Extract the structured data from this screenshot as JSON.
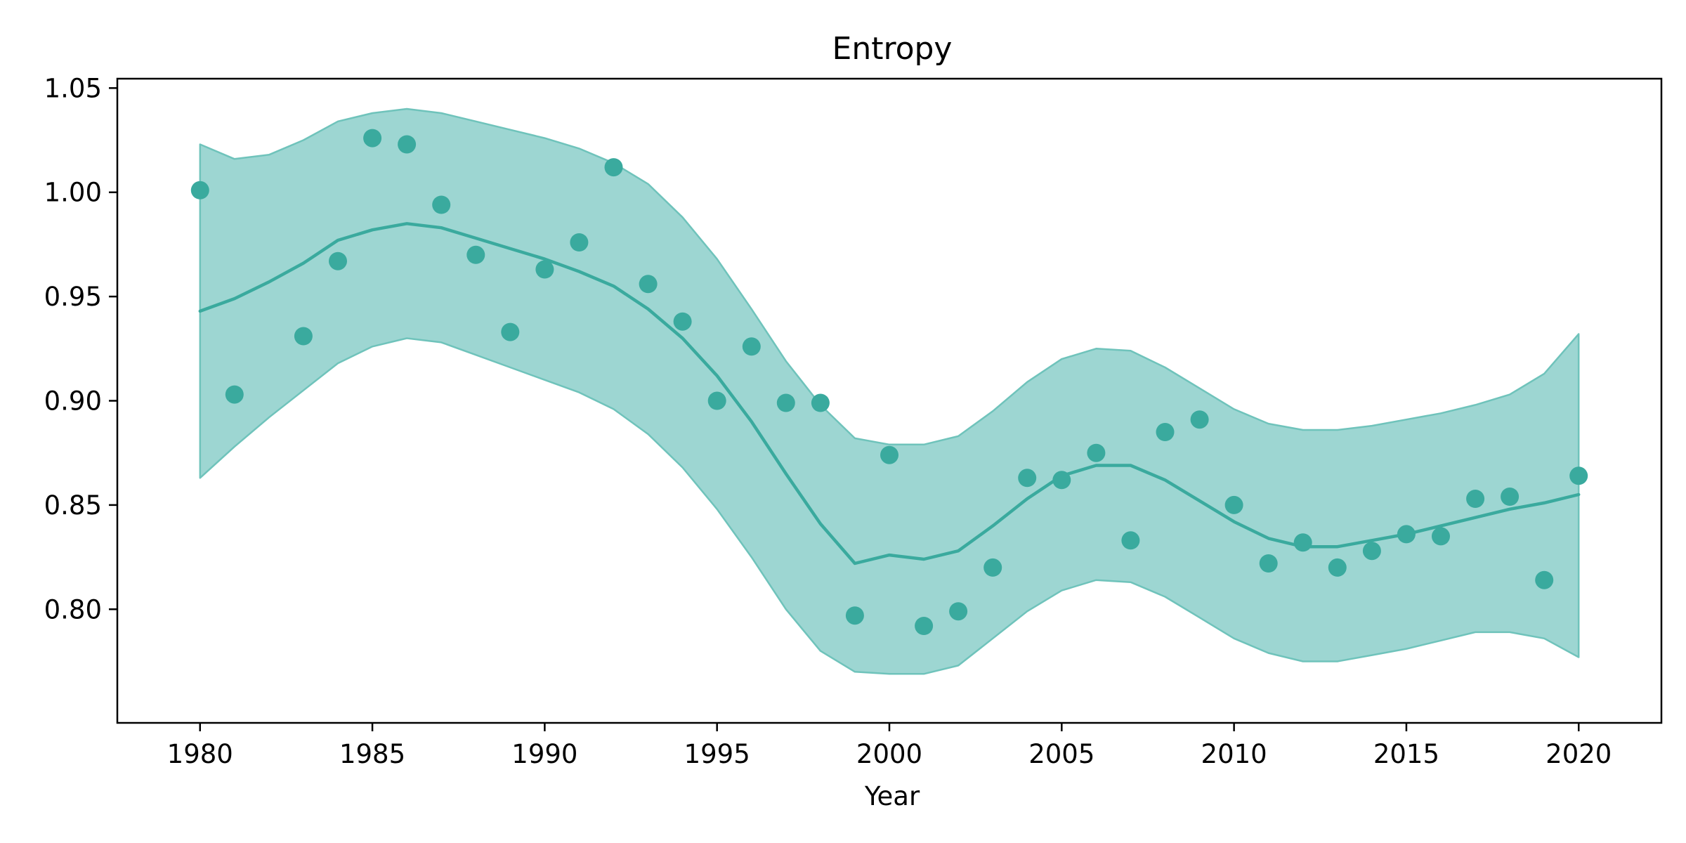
{
  "chart_data": {
    "type": "scatter",
    "title": "Entropy",
    "xlabel": "Year",
    "ylabel": "",
    "xlim": [
      1977.6,
      2022.4
    ],
    "ylim": [
      0.7455,
      1.0545
    ],
    "x_ticks": [
      1980,
      1985,
      1990,
      1995,
      2000,
      2005,
      2010,
      2015,
      2020
    ],
    "x_tick_labels": [
      "1980",
      "1985",
      "1990",
      "1995",
      "2000",
      "2005",
      "2010",
      "2015",
      "2020"
    ],
    "y_ticks": [
      0.8,
      0.85,
      0.9,
      0.95,
      1.0,
      1.05
    ],
    "y_tick_labels": [
      "0.80",
      "0.85",
      "0.90",
      "0.95",
      "1.00",
      "1.05"
    ],
    "grid": false,
    "color": "#3aaa9e",
    "band_color": "#9dd6d2",
    "points": {
      "x": [
        1980,
        1981,
        1983,
        1984,
        1985,
        1986,
        1987,
        1988,
        1989,
        1990,
        1991,
        1992,
        1993,
        1994,
        1995,
        1996,
        1997,
        1998,
        1999,
        2000,
        2001,
        2002,
        2003,
        2004,
        2005,
        2006,
        2007,
        2008,
        2009,
        2010,
        2011,
        2012,
        2013,
        2014,
        2015,
        2016,
        2017,
        2018,
        2019,
        2020
      ],
      "y": [
        1.001,
        0.903,
        0.931,
        0.967,
        1.026,
        1.023,
        0.994,
        0.97,
        0.933,
        0.963,
        0.976,
        1.012,
        0.956,
        0.938,
        0.9,
        0.926,
        0.899,
        0.899,
        0.797,
        0.874,
        0.792,
        0.799,
        0.82,
        0.863,
        0.862,
        0.875,
        0.833,
        0.885,
        0.891,
        0.85,
        0.822,
        0.832,
        0.82,
        0.828,
        0.836,
        0.835,
        0.853,
        0.854,
        0.814,
        0.864
      ]
    },
    "trend": {
      "x": [
        1980,
        1981,
        1982,
        1983,
        1984,
        1985,
        1986,
        1987,
        1988,
        1989,
        1990,
        1991,
        1992,
        1993,
        1994,
        1995,
        1996,
        1997,
        1998,
        1999,
        2000,
        2001,
        2002,
        2003,
        2004,
        2005,
        2006,
        2007,
        2008,
        2009,
        2010,
        2011,
        2012,
        2013,
        2014,
        2015,
        2016,
        2017,
        2018,
        2019,
        2020
      ],
      "y": [
        0.943,
        0.949,
        0.957,
        0.966,
        0.977,
        0.982,
        0.985,
        0.983,
        0.978,
        0.973,
        0.968,
        0.962,
        0.955,
        0.944,
        0.93,
        0.912,
        0.89,
        0.865,
        0.841,
        0.822,
        0.826,
        0.824,
        0.828,
        0.84,
        0.853,
        0.864,
        0.869,
        0.869,
        0.862,
        0.852,
        0.842,
        0.834,
        0.83,
        0.83,
        0.833,
        0.836,
        0.84,
        0.844,
        0.848,
        0.851,
        0.855
      ],
      "upper": [
        1.023,
        1.016,
        1.018,
        1.025,
        1.034,
        1.038,
        1.04,
        1.038,
        1.034,
        1.03,
        1.026,
        1.021,
        1.014,
        1.004,
        0.988,
        0.968,
        0.944,
        0.919,
        0.898,
        0.882,
        0.879,
        0.879,
        0.883,
        0.895,
        0.909,
        0.92,
        0.925,
        0.924,
        0.916,
        0.906,
        0.896,
        0.889,
        0.886,
        0.886,
        0.888,
        0.891,
        0.894,
        0.898,
        0.903,
        0.913,
        0.932
      ],
      "lower": [
        0.863,
        0.878,
        0.892,
        0.905,
        0.918,
        0.926,
        0.93,
        0.928,
        0.922,
        0.916,
        0.91,
        0.904,
        0.896,
        0.884,
        0.868,
        0.848,
        0.825,
        0.8,
        0.78,
        0.77,
        0.769,
        0.769,
        0.773,
        0.786,
        0.799,
        0.809,
        0.814,
        0.813,
        0.806,
        0.796,
        0.786,
        0.779,
        0.775,
        0.775,
        0.778,
        0.781,
        0.785,
        0.789,
        0.789,
        0.786,
        0.777
      ]
    }
  }
}
